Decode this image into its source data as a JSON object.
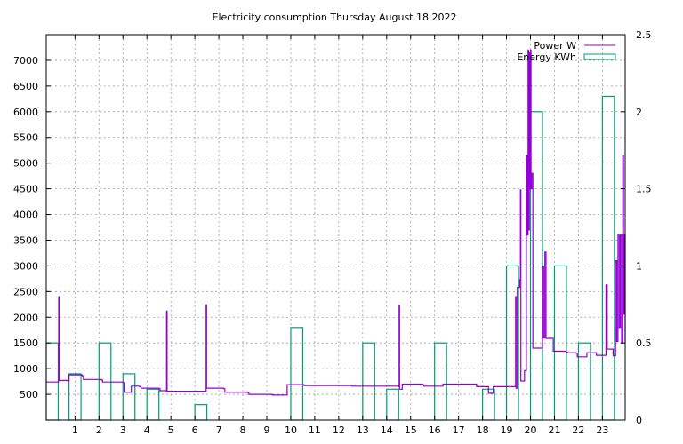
{
  "chart_data": {
    "type": "line",
    "title": "Electricity consumption Thursday August 18 2022",
    "xlabel": "",
    "ylabel": "",
    "y2label": "",
    "grid": true,
    "legend_position": "top-right",
    "xlim": [
      -0.2,
      23.95
    ],
    "ylim": [
      0,
      7500
    ],
    "y2lim": [
      0,
      2.5
    ],
    "x_ticks": [
      1,
      2,
      3,
      4,
      5,
      6,
      7,
      8,
      9,
      10,
      11,
      12,
      13,
      14,
      15,
      16,
      17,
      18,
      19,
      20,
      21,
      22,
      23
    ],
    "y_ticks": [
      500,
      1000,
      1500,
      2000,
      2500,
      3000,
      3500,
      4000,
      4500,
      5000,
      5500,
      6000,
      6500,
      7000
    ],
    "y2_ticks": [
      0,
      0.5,
      1,
      1.5,
      2,
      2.5
    ],
    "y2_tick_labels": [
      "0",
      "0.5",
      "1",
      "1.5",
      "2",
      "2.5"
    ],
    "colors": {
      "power": "#9400d3",
      "energy": "#009e73",
      "grid": "#a0a0a0"
    },
    "series": [
      {
        "name": "Power W",
        "axis": "left",
        "style": "steps",
        "points": [
          [
            -0.2,
            740
          ],
          [
            0.3,
            760
          ],
          [
            0.32,
            2400
          ],
          [
            0.34,
            770
          ],
          [
            0.7,
            760
          ],
          [
            0.75,
            880
          ],
          [
            1.3,
            860
          ],
          [
            1.35,
            790
          ],
          [
            2.1,
            780
          ],
          [
            2.15,
            740
          ],
          [
            3.0,
            730
          ],
          [
            3.05,
            540
          ],
          [
            3.3,
            540
          ],
          [
            3.35,
            660
          ],
          [
            3.7,
            650
          ],
          [
            3.75,
            620
          ],
          [
            4.5,
            610
          ],
          [
            4.55,
            570
          ],
          [
            4.8,
            565
          ],
          [
            4.82,
            2120
          ],
          [
            4.84,
            560
          ],
          [
            6.45,
            560
          ],
          [
            6.47,
            2240
          ],
          [
            6.49,
            620
          ],
          [
            7.2,
            610
          ],
          [
            7.25,
            540
          ],
          [
            8.2,
            535
          ],
          [
            8.25,
            500
          ],
          [
            9.2,
            495
          ],
          [
            9.25,
            485
          ],
          [
            9.8,
            485
          ],
          [
            9.85,
            690
          ],
          [
            10.5,
            690
          ],
          [
            10.55,
            670
          ],
          [
            12.5,
            670
          ],
          [
            12.55,
            660
          ],
          [
            14.5,
            650
          ],
          [
            14.52,
            2230
          ],
          [
            14.54,
            600
          ],
          [
            14.6,
            600
          ],
          [
            14.65,
            700
          ],
          [
            15.5,
            690
          ],
          [
            15.55,
            660
          ],
          [
            16.3,
            660
          ],
          [
            16.35,
            700
          ],
          [
            17.7,
            700
          ],
          [
            17.75,
            650
          ],
          [
            18.2,
            650
          ],
          [
            18.25,
            520
          ],
          [
            18.4,
            520
          ],
          [
            18.45,
            650
          ],
          [
            19.35,
            650
          ],
          [
            19.38,
            2400
          ],
          [
            19.4,
            620
          ],
          [
            19.45,
            2580
          ],
          [
            19.5,
            2580
          ],
          [
            19.55,
            2730
          ],
          [
            19.58,
            4480
          ],
          [
            19.6,
            760
          ],
          [
            19.7,
            760
          ],
          [
            19.75,
            960
          ],
          [
            19.8,
            960
          ],
          [
            19.83,
            5150
          ],
          [
            19.86,
            3600
          ],
          [
            19.9,
            7200
          ],
          [
            19.92,
            3700
          ],
          [
            19.95,
            7150
          ],
          [
            19.97,
            4500
          ],
          [
            20.0,
            7200
          ],
          [
            20.02,
            4500
          ],
          [
            20.05,
            4800
          ],
          [
            20.1,
            1400
          ],
          [
            20.45,
            1400
          ],
          [
            20.5,
            2980
          ],
          [
            20.55,
            1600
          ],
          [
            20.6,
            3270
          ],
          [
            20.65,
            1590
          ],
          [
            20.9,
            1590
          ],
          [
            20.95,
            1340
          ],
          [
            21.5,
            1320
          ],
          [
            21.55,
            1310
          ],
          [
            21.9,
            1300
          ],
          [
            21.95,
            1230
          ],
          [
            22.3,
            1230
          ],
          [
            22.35,
            1310
          ],
          [
            22.7,
            1310
          ],
          [
            22.75,
            1260
          ],
          [
            23.1,
            1260
          ],
          [
            23.15,
            2630
          ],
          [
            23.2,
            1380
          ],
          [
            23.4,
            1380
          ],
          [
            23.45,
            1250
          ],
          [
            23.5,
            1250
          ],
          [
            23.55,
            3100
          ],
          [
            23.6,
            1530
          ],
          [
            23.65,
            3600
          ],
          [
            23.7,
            1800
          ],
          [
            23.75,
            3600
          ],
          [
            23.8,
            1500
          ],
          [
            23.85,
            5150
          ],
          [
            23.88,
            2060
          ],
          [
            23.92,
            3600
          ],
          [
            23.95,
            1500
          ]
        ]
      },
      {
        "name": "Energy KWh",
        "axis": "right",
        "style": "boxes",
        "bars": [
          [
            -0.2,
            0.5
          ],
          [
            0.75,
            0.3
          ],
          [
            2.0,
            0.5
          ],
          [
            3.0,
            0.3
          ],
          [
            4.0,
            0.2
          ],
          [
            6.0,
            0.1
          ],
          [
            10.0,
            0.6
          ],
          [
            13.0,
            0.5
          ],
          [
            14.0,
            0.2
          ],
          [
            16.0,
            0.5
          ],
          [
            18.0,
            0.2
          ],
          [
            19.0,
            1.0
          ],
          [
            20.0,
            2.0
          ],
          [
            21.0,
            1.0
          ],
          [
            22.0,
            0.5
          ],
          [
            23.0,
            2.1
          ]
        ]
      }
    ]
  }
}
